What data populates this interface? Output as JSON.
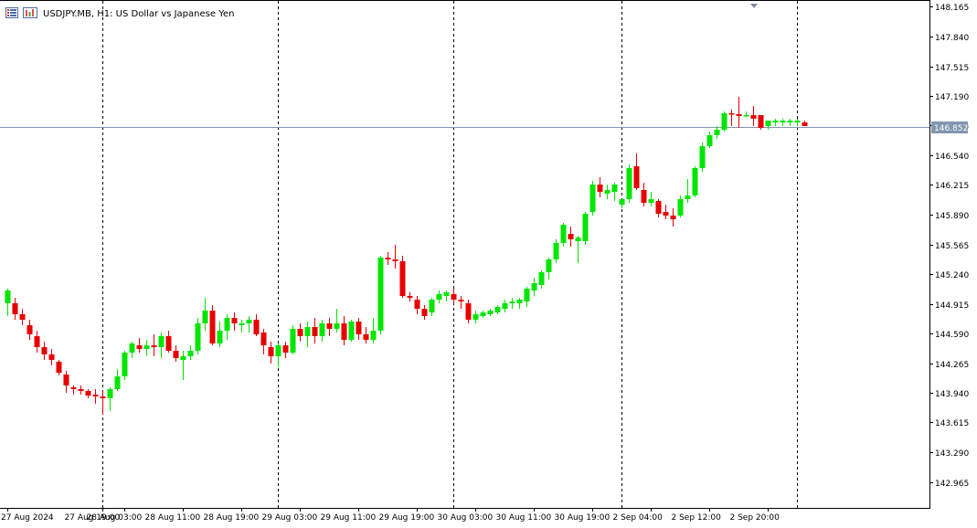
{
  "header": {
    "symbol_title": "USDJPY.MB, H1:  US Dollar vs Japanese Yen",
    "icons": [
      "grid-menu-icon",
      "chart-settings-icon"
    ]
  },
  "chart_data": {
    "type": "candlestick",
    "symbol": "USDJPY.MB",
    "timeframe": "H1",
    "title": "USDJPY.MB, H1:  US Dollar vs Japanese Yen",
    "current_price": "146.852",
    "current_price_value": 146.852,
    "ylim": [
      142.68,
      148.23
    ],
    "y_ticks": [
      "148.165",
      "147.840",
      "147.515",
      "147.190",
      "146.865",
      "146.540",
      "146.215",
      "145.890",
      "145.565",
      "145.240",
      "144.915",
      "144.590",
      "144.265",
      "143.940",
      "143.615",
      "143.290",
      "142.965"
    ],
    "x_labels": [
      "27 Aug 2024",
      "27 Aug 19:00",
      "28 Aug 03:00",
      "28 Aug 11:00",
      "28 Aug 19:00",
      "29 Aug 03:00",
      "29 Aug 11:00",
      "29 Aug 19:00",
      "30 Aug 03:00",
      "30 Aug 11:00",
      "30 Aug 19:00",
      "2 Sep 04:00",
      "2 Sep 12:00",
      "2 Sep 20:00"
    ],
    "x_label_bar_index": [
      0,
      13,
      16,
      24,
      32,
      40,
      48,
      56,
      64,
      72,
      80,
      88,
      96,
      104
    ],
    "session_separator_bar_index": [
      13,
      37,
      61,
      84,
      108
    ],
    "grid": false,
    "colors": {
      "bull": "#00e600",
      "bear": "#e60000",
      "price_line": "#8296ad",
      "separator": "#000000"
    },
    "candles": [
      [
        144.92,
        145.08,
        144.78,
        145.06
      ],
      [
        144.92,
        144.98,
        144.74,
        144.8
      ],
      [
        144.8,
        144.86,
        144.68,
        144.74
      ],
      [
        144.68,
        144.74,
        144.52,
        144.58
      ],
      [
        144.56,
        144.62,
        144.38,
        144.44
      ],
      [
        144.44,
        144.5,
        144.3,
        144.36
      ],
      [
        144.36,
        144.42,
        144.24,
        144.3
      ],
      [
        144.28,
        144.3,
        144.13,
        144.16
      ],
      [
        144.14,
        144.18,
        143.94,
        144.02
      ],
      [
        144.0,
        144.02,
        143.92,
        143.98
      ],
      [
        143.98,
        144.02,
        143.92,
        143.96
      ],
      [
        143.96,
        143.98,
        143.88,
        143.91
      ],
      [
        143.92,
        143.98,
        143.82,
        143.9
      ],
      [
        143.9,
        143.96,
        143.7,
        143.88
      ],
      [
        143.88,
        144.0,
        143.74,
        143.98
      ],
      [
        143.98,
        144.2,
        143.96,
        144.12
      ],
      [
        144.12,
        144.4,
        144.08,
        144.38
      ],
      [
        144.38,
        144.5,
        144.32,
        144.48
      ],
      [
        144.46,
        144.54,
        144.38,
        144.42
      ],
      [
        144.42,
        144.52,
        144.34,
        144.46
      ],
      [
        144.46,
        144.58,
        144.34,
        144.44
      ],
      [
        144.44,
        144.6,
        144.32,
        144.56
      ],
      [
        144.56,
        144.62,
        144.38,
        144.4
      ],
      [
        144.4,
        144.46,
        144.28,
        144.32
      ],
      [
        144.3,
        144.4,
        144.08,
        144.34
      ],
      [
        144.34,
        144.46,
        144.3,
        144.4
      ],
      [
        144.4,
        144.76,
        144.36,
        144.7
      ],
      [
        144.7,
        144.98,
        144.62,
        144.84
      ],
      [
        144.84,
        144.9,
        144.46,
        144.48
      ],
      [
        144.48,
        144.72,
        144.44,
        144.62
      ],
      [
        144.62,
        144.8,
        144.52,
        144.76
      ],
      [
        144.76,
        144.82,
        144.62,
        144.7
      ],
      [
        144.68,
        144.74,
        144.6,
        144.7
      ],
      [
        144.7,
        144.78,
        144.6,
        144.74
      ],
      [
        144.74,
        144.8,
        144.56,
        144.58
      ],
      [
        144.6,
        144.64,
        144.36,
        144.46
      ],
      [
        144.44,
        144.5,
        144.26,
        144.34
      ],
      [
        144.34,
        144.48,
        144.22,
        144.46
      ],
      [
        144.46,
        144.5,
        144.32,
        144.38
      ],
      [
        144.38,
        144.68,
        144.36,
        144.64
      ],
      [
        144.64,
        144.7,
        144.5,
        144.56
      ],
      [
        144.56,
        144.72,
        144.44,
        144.66
      ],
      [
        144.66,
        144.76,
        144.48,
        144.56
      ],
      [
        144.56,
        144.74,
        144.5,
        144.7
      ],
      [
        144.7,
        144.76,
        144.56,
        144.64
      ],
      [
        144.64,
        144.86,
        144.6,
        144.7
      ],
      [
        144.7,
        144.78,
        144.46,
        144.52
      ],
      [
        144.52,
        144.74,
        144.5,
        144.72
      ],
      [
        144.72,
        144.76,
        144.52,
        144.58
      ],
      [
        144.58,
        144.66,
        144.48,
        144.52
      ],
      [
        144.52,
        144.76,
        144.48,
        144.62
      ],
      [
        144.62,
        145.44,
        144.58,
        145.42
      ],
      [
        145.42,
        145.48,
        145.34,
        145.4
      ],
      [
        145.4,
        145.56,
        145.3,
        145.38
      ],
      [
        145.38,
        145.44,
        144.98,
        145.0
      ],
      [
        145.0,
        145.04,
        144.94,
        144.98
      ],
      [
        144.96,
        145.0,
        144.8,
        144.86
      ],
      [
        144.86,
        144.9,
        144.74,
        144.78
      ],
      [
        144.82,
        144.98,
        144.78,
        144.96
      ],
      [
        144.96,
        145.06,
        144.92,
        145.02
      ],
      [
        145.0,
        145.06,
        144.94,
        145.04
      ],
      [
        145.02,
        145.08,
        144.92,
        144.96
      ],
      [
        144.96,
        145.0,
        144.86,
        144.94
      ],
      [
        144.92,
        144.96,
        144.7,
        144.74
      ],
      [
        144.74,
        144.84,
        144.7,
        144.8
      ],
      [
        144.78,
        144.84,
        144.76,
        144.82
      ],
      [
        144.8,
        144.86,
        144.78,
        144.84
      ],
      [
        144.82,
        144.9,
        144.8,
        144.88
      ],
      [
        144.86,
        144.96,
        144.82,
        144.92
      ],
      [
        144.92,
        144.98,
        144.86,
        144.94
      ],
      [
        144.92,
        144.98,
        144.86,
        144.96
      ],
      [
        144.94,
        145.1,
        144.88,
        145.08
      ],
      [
        145.06,
        145.2,
        145.0,
        145.14
      ],
      [
        145.12,
        145.28,
        145.08,
        145.26
      ],
      [
        145.26,
        145.42,
        145.18,
        145.4
      ],
      [
        145.4,
        145.62,
        145.36,
        145.58
      ],
      [
        145.58,
        145.8,
        145.54,
        145.78
      ],
      [
        145.68,
        145.76,
        145.54,
        145.62
      ],
      [
        145.6,
        145.66,
        145.36,
        145.64
      ],
      [
        145.6,
        145.92,
        145.56,
        145.9
      ],
      [
        145.92,
        146.26,
        145.88,
        146.22
      ],
      [
        146.22,
        146.3,
        146.08,
        146.14
      ],
      [
        146.12,
        146.22,
        146.06,
        146.16
      ],
      [
        146.14,
        146.24,
        146.04,
        146.22
      ],
      [
        146.0,
        146.06,
        145.96,
        146.06
      ],
      [
        146.06,
        146.44,
        146.02,
        146.4
      ],
      [
        146.42,
        146.56,
        146.16,
        146.18
      ],
      [
        146.16,
        146.24,
        145.98,
        146.02
      ],
      [
        146.02,
        146.14,
        145.98,
        146.06
      ],
      [
        146.04,
        146.06,
        145.86,
        145.9
      ],
      [
        145.92,
        146.0,
        145.84,
        145.88
      ],
      [
        145.88,
        145.96,
        145.76,
        145.84
      ],
      [
        145.88,
        146.1,
        145.86,
        146.06
      ],
      [
        146.06,
        146.28,
        146.02,
        146.1
      ],
      [
        146.1,
        146.42,
        146.08,
        146.4
      ],
      [
        146.4,
        146.68,
        146.36,
        146.64
      ],
      [
        146.64,
        146.8,
        146.62,
        146.76
      ],
      [
        146.76,
        146.86,
        146.72,
        146.82
      ],
      [
        146.82,
        147.02,
        146.8,
        147.0
      ],
      [
        147.0,
        147.04,
        146.86,
        146.99
      ],
      [
        146.99,
        147.18,
        146.84,
        146.97
      ],
      [
        146.98,
        147.02,
        146.96,
        146.98
      ],
      [
        146.98,
        147.08,
        146.86,
        146.94
      ],
      [
        146.98,
        146.98,
        146.82,
        146.84
      ],
      [
        146.86,
        146.92,
        146.82,
        146.92
      ],
      [
        146.9,
        146.94,
        146.86,
        146.92
      ],
      [
        146.9,
        146.94,
        146.86,
        146.92
      ],
      [
        146.9,
        146.94,
        146.86,
        146.92
      ],
      [
        146.9,
        146.94,
        146.86,
        146.92
      ],
      [
        146.9,
        146.92,
        146.86,
        146.86
      ]
    ]
  }
}
